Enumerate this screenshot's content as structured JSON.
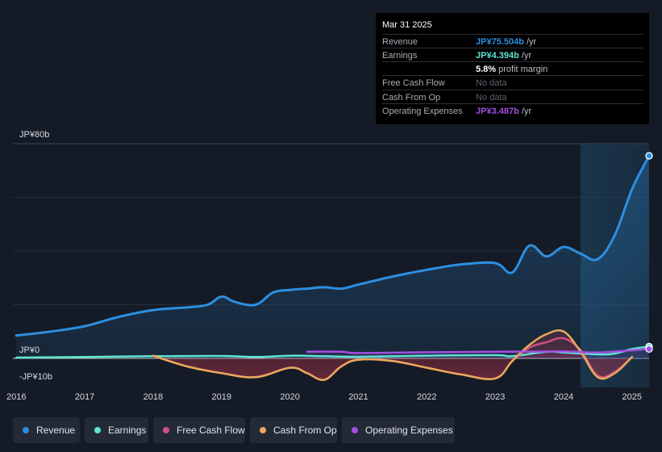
{
  "tooltip": {
    "date": "Mar 31 2025",
    "rows": [
      {
        "label": "Revenue",
        "value": "JP¥75.504b",
        "unit": " /yr",
        "color": "#2d8fe0"
      },
      {
        "label": "Earnings",
        "value": "JP¥4.394b",
        "unit": " /yr",
        "color": "#5fe3d2"
      },
      {
        "label": "",
        "value": "5.8%",
        "unit": " profit margin",
        "color": "#ffffff"
      },
      {
        "label": "Free Cash Flow",
        "value": "No data",
        "unit": "",
        "color": ""
      },
      {
        "label": "Cash From Op",
        "value": "No data",
        "unit": "",
        "color": ""
      },
      {
        "label": "Operating Expenses",
        "value": "JP¥3.487b",
        "unit": " /yr",
        "color": "#a34fe3"
      }
    ]
  },
  "legend": [
    {
      "label": "Revenue",
      "color": "#2d8fe0"
    },
    {
      "label": "Earnings",
      "color": "#5fe3d2"
    },
    {
      "label": "Free Cash Flow",
      "color": "#d04f82"
    },
    {
      "label": "Cash From Op",
      "color": "#e8a95a"
    },
    {
      "label": "Operating Expenses",
      "color": "#a34fe3"
    }
  ],
  "chart_data": {
    "type": "area",
    "title": "",
    "y_axis_labels": [
      "JP¥80b",
      "JP¥0",
      "-JP¥10b"
    ],
    "x_axis_labels": [
      "2016",
      "2017",
      "2018",
      "2019",
      "2020",
      "2021",
      "2022",
      "2023",
      "2024",
      "2025"
    ],
    "ylim": [
      -10,
      80
    ],
    "xlim": [
      2015.95,
      2025.25
    ],
    "forecast_shade_start": 2024.25,
    "series": [
      {
        "name": "Revenue",
        "color": "#2d8fe0",
        "x": [
          2016.0,
          2016.5,
          2017.0,
          2017.5,
          2018.0,
          2018.5,
          2018.8,
          2019.0,
          2019.2,
          2019.5,
          2019.75,
          2020.0,
          2020.25,
          2020.5,
          2020.75,
          2021.0,
          2021.5,
          2022.0,
          2022.5,
          2023.0,
          2023.25,
          2023.5,
          2023.75,
          2024.0,
          2024.25,
          2024.5,
          2024.75,
          2025.0,
          2025.25
        ],
        "values": [
          8.5,
          10,
          12,
          15.5,
          18,
          19,
          20,
          23,
          21,
          20,
          24.5,
          25.5,
          26,
          26.5,
          26,
          27.5,
          30.5,
          33,
          35,
          35.5,
          32,
          42,
          38,
          41.5,
          39,
          37,
          46,
          63,
          75.5
        ]
      },
      {
        "name": "Earnings",
        "color": "#5fe3d2",
        "x": [
          2016.0,
          2017.0,
          2018.0,
          2019.0,
          2019.5,
          2020.0,
          2020.5,
          2021.0,
          2022.0,
          2023.0,
          2023.25,
          2023.75,
          2024.0,
          2024.5,
          2024.75,
          2025.0,
          2025.25
        ],
        "values": [
          0.3,
          0.5,
          0.8,
          0.9,
          0.5,
          1.0,
          0.8,
          0.6,
          1.0,
          1.2,
          0.8,
          2.5,
          2.2,
          1.5,
          1.8,
          3.5,
          4.4
        ]
      },
      {
        "name": "Free Cash Flow",
        "color": "#d04f82",
        "x": [
          2018.0,
          2018.5,
          2019.0,
          2019.5,
          2020.0,
          2020.25,
          2020.5,
          2020.75,
          2021.0,
          2021.5,
          2022.0,
          2022.5,
          2023.0,
          2023.25,
          2023.5,
          2023.75,
          2024.0,
          2024.25,
          2024.5,
          2024.75,
          2025.0
        ],
        "values": [
          1.0,
          -3.0,
          -5.5,
          -7.0,
          -3.5,
          -5.5,
          -8.0,
          -3.0,
          -0.5,
          -1.0,
          -3.5,
          -6.0,
          -7.5,
          -1.0,
          4.0,
          6.0,
          7.5,
          3.0,
          -6.5,
          -5.0,
          0.5
        ]
      },
      {
        "name": "Cash From Op",
        "color": "#e8a95a",
        "x": [
          2018.0,
          2018.5,
          2019.0,
          2019.5,
          2020.0,
          2020.25,
          2020.5,
          2020.75,
          2021.0,
          2021.5,
          2022.0,
          2022.5,
          2023.0,
          2023.25,
          2023.5,
          2023.75,
          2024.0,
          2024.25,
          2024.5,
          2024.75,
          2025.0
        ],
        "values": [
          1.0,
          -3.0,
          -5.5,
          -7.0,
          -3.5,
          -5.5,
          -8.0,
          -3.0,
          -0.5,
          -1.0,
          -3.5,
          -6.0,
          -7.5,
          -1.0,
          5.0,
          9.0,
          10.0,
          2.5,
          -7.0,
          -5.5,
          0.5
        ]
      },
      {
        "name": "Operating Expenses",
        "color": "#a34fe3",
        "x": [
          2020.25,
          2020.75,
          2021.0,
          2022.0,
          2023.0,
          2023.5,
          2024.0,
          2024.5,
          2025.0,
          2025.25
        ],
        "values": [
          2.5,
          2.5,
          2.0,
          2.3,
          2.5,
          2.5,
          2.6,
          2.2,
          3.0,
          3.5
        ]
      }
    ]
  }
}
